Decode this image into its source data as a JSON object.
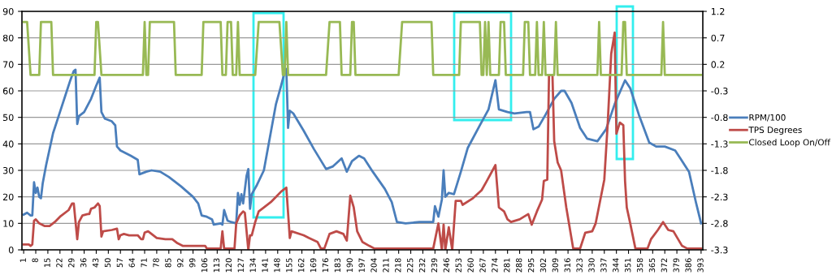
{
  "chart_data": {
    "type": "line",
    "legend": "right",
    "grid": "y",
    "marker": "none",
    "line_style": "solid",
    "xlim": [
      0,
      394
    ],
    "xticks": [
      1,
      8,
      15,
      22,
      29,
      36,
      43,
      50,
      57,
      64,
      71,
      78,
      85,
      92,
      99,
      106,
      113,
      120,
      127,
      134,
      141,
      148,
      155,
      162,
      169,
      176,
      183,
      190,
      197,
      204,
      211,
      218,
      225,
      232,
      239,
      246,
      253,
      260,
      267,
      274,
      281,
      288,
      295,
      302,
      309,
      316,
      323,
      330,
      337,
      344,
      351,
      358,
      365,
      372,
      379,
      386,
      393
    ],
    "ylim": [
      0,
      90
    ],
    "yticks": [
      0,
      10,
      20,
      30,
      40,
      50,
      60,
      70,
      80,
      90
    ],
    "y2lim": [
      -3.3,
      1.2
    ],
    "y2ticks": [
      -3.3,
      -2.8,
      -2.3,
      -1.8,
      -1.3,
      -0.8,
      -0.3,
      0.2,
      0.7,
      1.2
    ],
    "series": [
      {
        "name": "RPM/100",
        "color": "#4a7ebb",
        "x": [
          1,
          3,
          5,
          6,
          7,
          8,
          9,
          10,
          11,
          12,
          14,
          18,
          22,
          25,
          28,
          30,
          31,
          32,
          33,
          36,
          40,
          43,
          45,
          46,
          48,
          52,
          54,
          55,
          57,
          63,
          67,
          68,
          72,
          75,
          80,
          85,
          92,
          99,
          102,
          104,
          107,
          110,
          111,
          115,
          116,
          117,
          119,
          121,
          124,
          125,
          126,
          127,
          128,
          130,
          131,
          132,
          133,
          136,
          140,
          147,
          150,
          152,
          153,
          154,
          155,
          157,
          163,
          169,
          176,
          180,
          185,
          188,
          191,
          195,
          198,
          203,
          210,
          214,
          217,
          222,
          230,
          238,
          239,
          241,
          243,
          244,
          245,
          247,
          250,
          254,
          258,
          265,
          270,
          274,
          276,
          281,
          285,
          292,
          294,
          296,
          299,
          303,
          308,
          312,
          314,
          318,
          323,
          327,
          333,
          338,
          343,
          347,
          349,
          352,
          357,
          363,
          367,
          372,
          378,
          381,
          386,
          390,
          393
        ],
        "values": [
          13.3,
          14,
          13,
          13,
          25.5,
          21.5,
          23.5,
          20,
          19.5,
          25,
          32,
          44,
          52,
          58,
          64,
          67.5,
          68,
          47.5,
          50.5,
          52,
          57,
          62,
          65,
          52,
          49.5,
          48.5,
          47,
          39,
          37.5,
          35.5,
          34,
          28.5,
          29.5,
          30,
          29.5,
          27.5,
          24,
          20,
          17.5,
          13,
          12.5,
          11.5,
          9.5,
          10,
          9.5,
          15,
          11,
          10.5,
          10,
          21.5,
          17,
          21,
          17.5,
          28,
          30.5,
          15.5,
          21,
          24.5,
          30,
          55,
          62,
          67,
          68.3,
          46,
          52.5,
          51.5,
          45,
          38,
          30.5,
          31.5,
          34.5,
          29.5,
          33.5,
          35.5,
          34.5,
          29.5,
          23,
          18,
          10.5,
          10,
          10.5,
          10.5,
          16.5,
          12.5,
          19,
          30,
          20,
          21.5,
          21,
          29.5,
          38.5,
          47,
          53,
          64,
          53,
          52,
          51.5,
          52,
          52,
          45.5,
          46.5,
          51,
          57,
          60,
          60,
          55.5,
          46,
          42,
          41,
          45.5,
          55,
          61,
          64,
          61,
          51,
          40.5,
          39,
          39,
          37.5,
          34.5,
          29.5,
          18,
          10
        ]
      },
      {
        "name": "TPS Degrees",
        "color": "#be4b48",
        "x": [
          1,
          4,
          5,
          6,
          7,
          8,
          10,
          13,
          16,
          19,
          22,
          27,
          29,
          30,
          32,
          33,
          35,
          38,
          39,
          40,
          42,
          44,
          45,
          46,
          47,
          52,
          55,
          56,
          57,
          59,
          62,
          67,
          69,
          70,
          71,
          73,
          75,
          78,
          83,
          87,
          90,
          93,
          100,
          106,
          107,
          115,
          116,
          117,
          123,
          124,
          126,
          128,
          129,
          131,
          132,
          133,
          135,
          137,
          139,
          144,
          147,
          150,
          153,
          155,
          156,
          163,
          166,
          171,
          173,
          175,
          178,
          182,
          186,
          188,
          190,
          192,
          194,
          197,
          201,
          204,
          225,
          238,
          241,
          243,
          244,
          245,
          247,
          249,
          251,
          254,
          255,
          261,
          266,
          269,
          274,
          276,
          279,
          281,
          283,
          288,
          293,
          295,
          298,
          301,
          302,
          304,
          305,
          307,
          308,
          310,
          312,
          315,
          319,
          323,
          326,
          330,
          332,
          337,
          339,
          341,
          343,
          344,
          346,
          348,
          349,
          350,
          352,
          355,
          362,
          364,
          368,
          371,
          374,
          377,
          382,
          385,
          393
        ],
        "values": [
          2,
          2,
          1.5,
          2,
          11,
          11.5,
          10,
          9,
          9,
          10.5,
          12.5,
          15,
          17.5,
          17.5,
          4,
          10.5,
          13,
          13.5,
          13.5,
          15.5,
          16,
          17.5,
          16.5,
          5,
          7,
          7.5,
          8,
          4,
          5.5,
          6,
          5.5,
          5.5,
          4,
          4,
          6.5,
          7,
          6,
          4.5,
          4,
          4,
          2.5,
          1.5,
          1.5,
          1.5,
          0.5,
          0.5,
          7,
          0.5,
          0.5,
          10,
          13,
          14.5,
          14,
          0,
          5.5,
          5.5,
          10.5,
          14.5,
          15.5,
          18,
          20,
          22,
          23.5,
          4.5,
          7,
          5.5,
          4.5,
          3,
          0.5,
          0.5,
          6,
          7,
          6,
          3.5,
          20.5,
          16,
          7,
          3,
          1.5,
          0.5,
          0.5,
          0.5,
          10,
          0,
          9.5,
          0,
          8.5,
          0,
          18.5,
          18.5,
          17,
          19.5,
          22.5,
          26,
          32,
          16,
          14.5,
          11.5,
          10.5,
          11.5,
          13.5,
          9.5,
          14.5,
          19,
          26,
          26.5,
          66,
          66,
          41,
          33,
          30,
          16,
          0.5,
          0.5,
          6.5,
          7,
          10,
          26.5,
          48,
          74,
          82,
          43.8,
          48,
          47,
          26,
          16,
          10,
          0.5,
          0.5,
          4,
          7.5,
          10.5,
          7.5,
          7,
          1.5,
          0.5,
          0.5
        ]
      },
      {
        "name": "Closed Loop On/Off",
        "color": "#98b954",
        "axis": "y2",
        "x": [
          1,
          3,
          5,
          10,
          11,
          17,
          18,
          42,
          43,
          44,
          46,
          70,
          71,
          72,
          73,
          74,
          88,
          89,
          104,
          105,
          115,
          116,
          118,
          119,
          121,
          122,
          124,
          125,
          126,
          135,
          137,
          149,
          151,
          152,
          153,
          154,
          176,
          178,
          184,
          185,
          190,
          191,
          192,
          193,
          218,
          220,
          237,
          238,
          253,
          254,
          265,
          266,
          267,
          268,
          269,
          270,
          271,
          276,
          277,
          279,
          280,
          290,
          291,
          293,
          294,
          297,
          298,
          299,
          301,
          302,
          303,
          308,
          309,
          310,
          333,
          334,
          335,
          347,
          348,
          349,
          350,
          370,
          371,
          372,
          393
        ],
        "values": [
          1,
          1,
          0,
          0,
          1,
          1,
          0,
          0,
          1,
          1,
          0,
          0,
          1,
          0,
          0,
          1,
          1,
          0,
          0,
          1,
          1,
          0,
          0,
          1,
          1,
          0,
          0,
          1,
          0,
          0,
          1,
          1,
          0,
          0,
          1,
          0,
          0,
          1,
          1,
          0,
          0,
          1,
          1,
          0,
          0,
          1,
          1,
          0,
          0,
          1,
          1,
          0,
          0,
          1,
          0,
          1,
          0,
          0,
          1,
          1,
          0,
          0,
          1,
          1,
          0,
          0,
          1,
          0,
          0,
          1,
          0,
          0,
          1,
          0,
          0,
          1,
          0,
          0,
          1,
          1,
          0,
          0,
          1,
          0,
          0
        ]
      }
    ]
  }
}
